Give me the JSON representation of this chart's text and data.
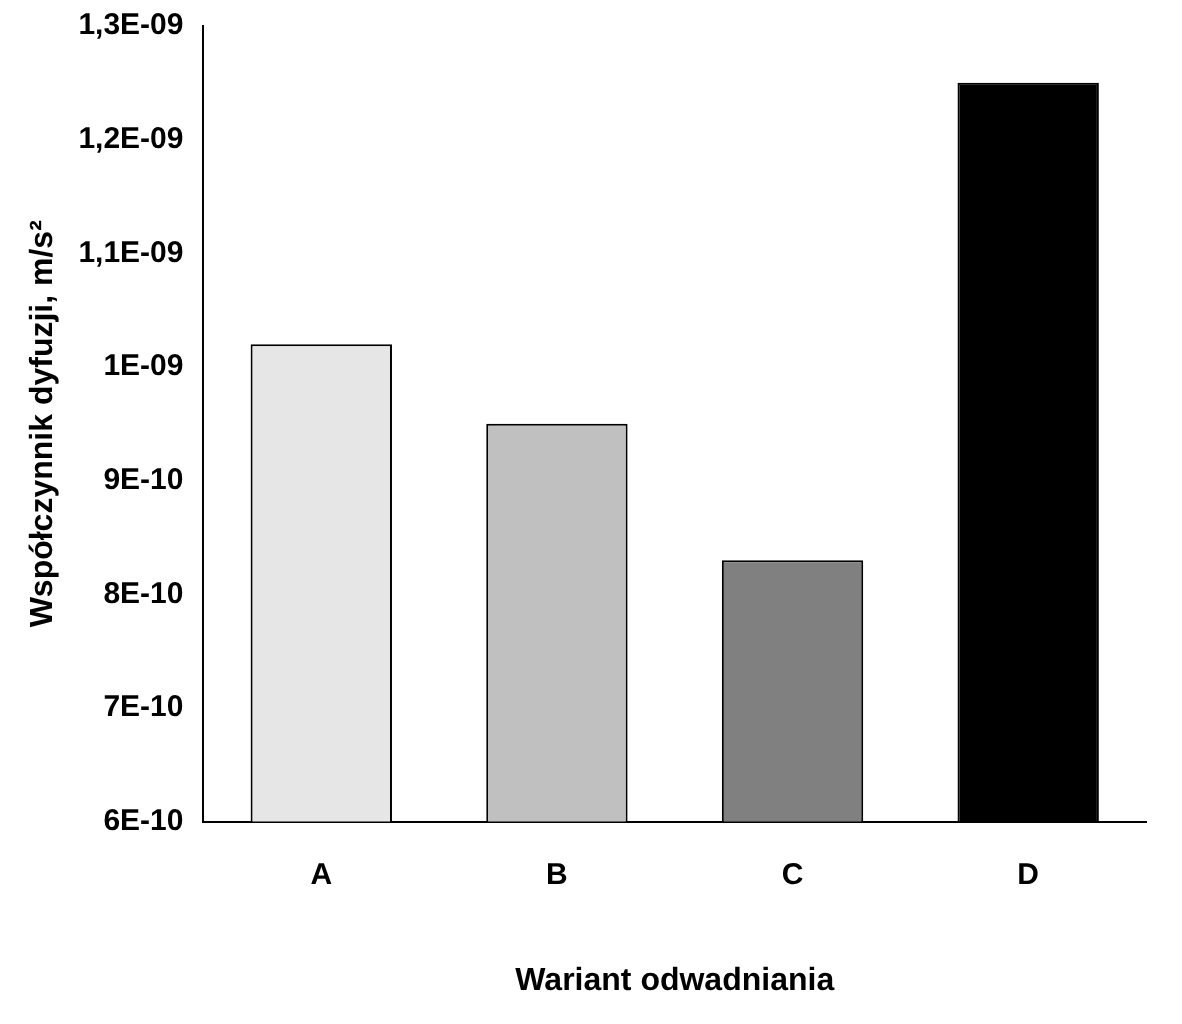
{
  "chart_data": {
    "type": "bar",
    "xlabel": "Wariant odwadniania",
    "ylabel": "Współczynnik dyfuzji, m/s²",
    "categories": [
      "A",
      "B",
      "C",
      "D"
    ],
    "values": [
      1.02e-09,
      9.5e-10,
      8.3e-10,
      1.25e-09
    ],
    "colors": [
      "#e6e6e6",
      "#c0c0c0",
      "#808080",
      "#000000"
    ],
    "ylim": [
      6e-10,
      1.3e-09
    ],
    "yticks": [
      {
        "value": 6e-10,
        "label": "6E-10"
      },
      {
        "value": 7e-10,
        "label": "7E-10"
      },
      {
        "value": 8e-10,
        "label": "8E-10"
      },
      {
        "value": 9e-10,
        "label": "9E-10"
      },
      {
        "value": 1e-09,
        "label": "1E-09"
      },
      {
        "value": 1.1e-09,
        "label": "1,1E-09"
      },
      {
        "value": 1.2e-09,
        "label": "1,2E-09"
      },
      {
        "value": 1.3e-09,
        "label": "1,3E-09"
      }
    ],
    "grid": false,
    "legend": false
  }
}
